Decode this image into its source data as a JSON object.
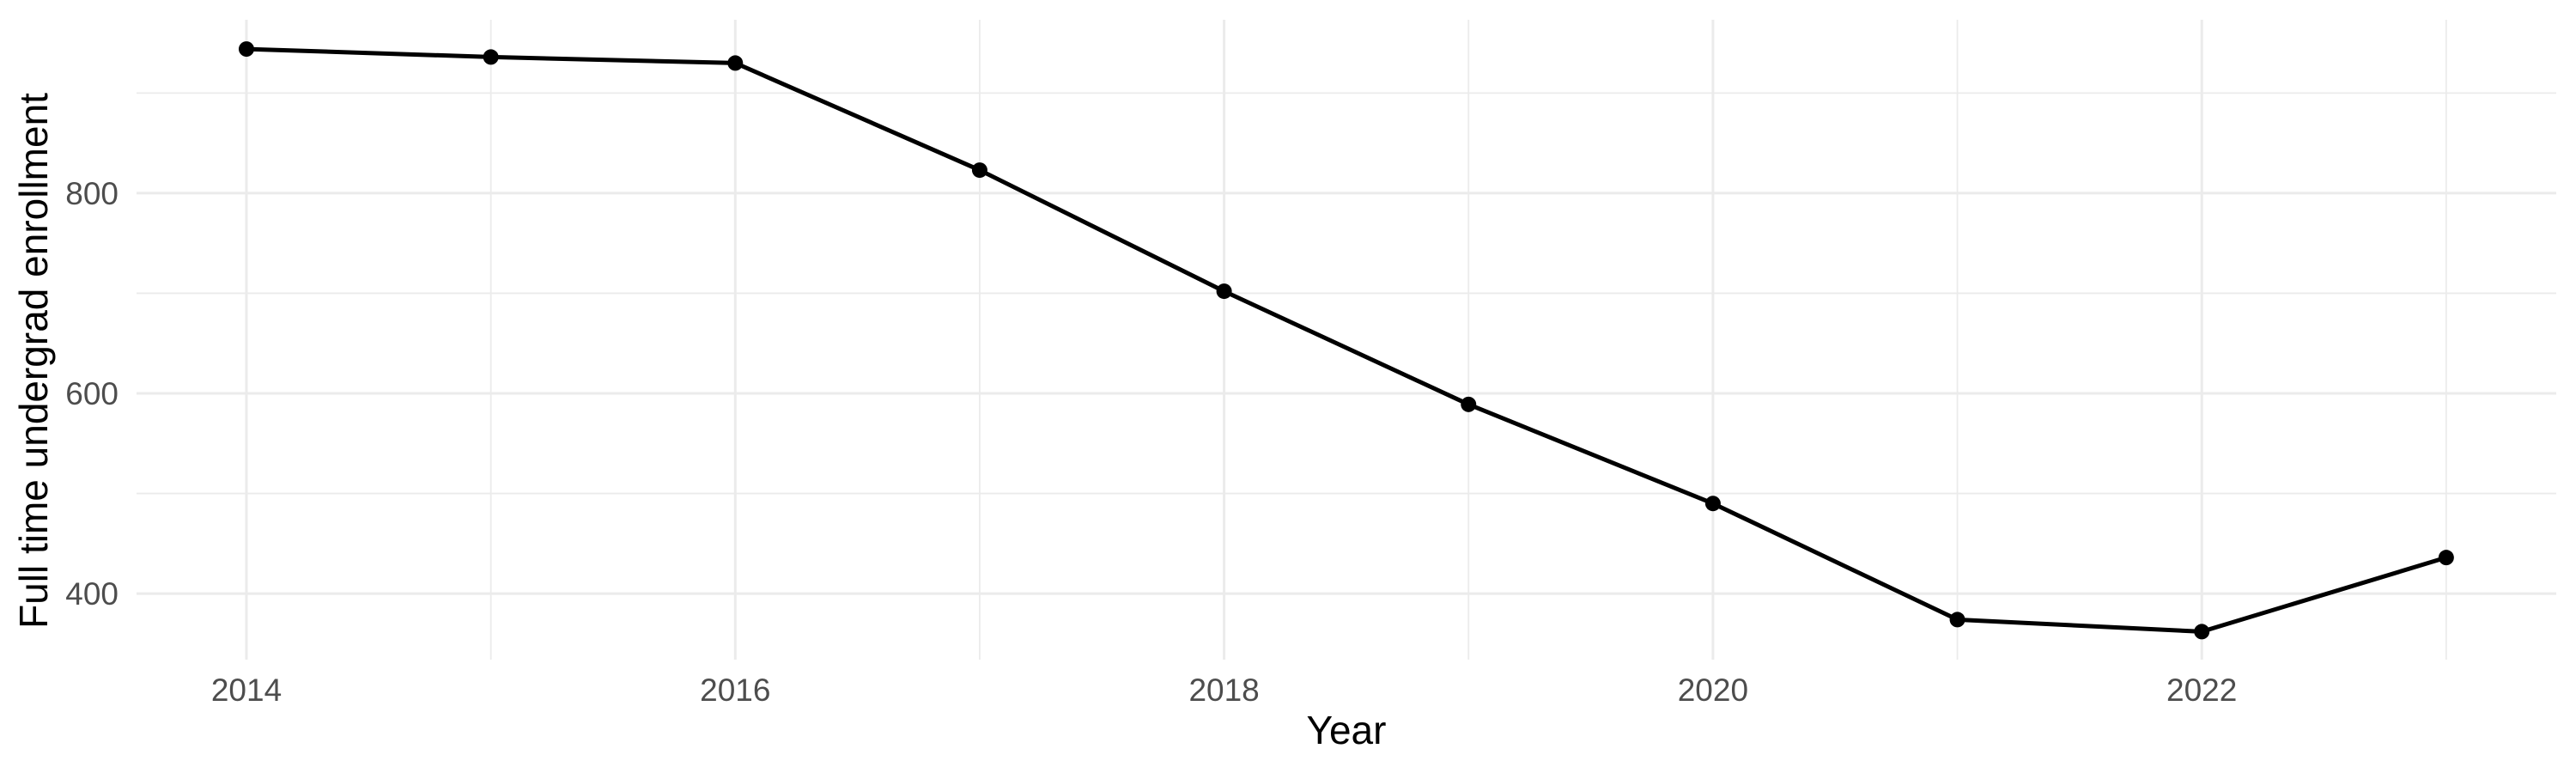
{
  "chart_data": {
    "type": "line",
    "title": "",
    "xlabel": "Year",
    "ylabel": "Full time undergrad enrollment",
    "x": [
      2014,
      2015,
      2016,
      2017,
      2018,
      2019,
      2020,
      2021,
      2022,
      2023
    ],
    "values": [
      944,
      936,
      930,
      823,
      702,
      589,
      490,
      374,
      362,
      436
    ],
    "series_name": "Full time undergrad enrollment",
    "x_ticks": [
      2014,
      2016,
      2018,
      2020,
      2022
    ],
    "x_minor_gridlines": [
      2015,
      2017,
      2019,
      2021,
      2023
    ],
    "y_ticks": [
      400,
      600,
      800
    ],
    "y_minor_gridlines": [
      500,
      700,
      900
    ],
    "xlim": [
      2013.55,
      2023.45
    ],
    "ylim": [
      333,
      973
    ],
    "grid": "major+minor",
    "legend": "none",
    "colors": {
      "line": "#000000",
      "point": "#000000",
      "gridline": "#EBEBEB",
      "tick_label": "#4D4D4D",
      "axis_title": "#000000",
      "background": "#FFFFFF"
    }
  }
}
